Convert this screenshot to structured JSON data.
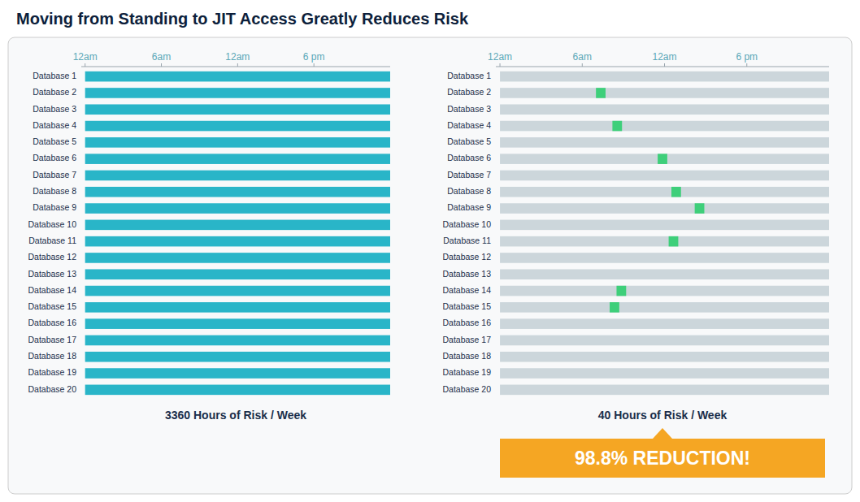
{
  "chart_data": [
    {
      "type": "bar",
      "orientation": "horizontal",
      "title": "Moving from Standing to JIT Access Greatly Reduces Risk",
      "xlabel": "3360 Hours of Risk / Week",
      "categories": [
        "Database 1",
        "Database 2",
        "Database 3",
        "Database 4",
        "Database 5",
        "Database 6",
        "Database 7",
        "Database 8",
        "Database 9",
        "Database 10",
        "Database 11",
        "Database 12",
        "Database 13",
        "Database 14",
        "Database 15",
        "Database 16",
        "Database 17",
        "Database 18",
        "Database 19",
        "Database 20"
      ],
      "values": [
        24,
        24,
        24,
        24,
        24,
        24,
        24,
        24,
        24,
        24,
        24,
        24,
        24,
        24,
        24,
        24,
        24,
        24,
        24,
        24
      ],
      "color": "#29b5c8",
      "xlim": [
        -0.3,
        24
      ],
      "xticks": [
        {
          "value": 0,
          "label": "12am"
        },
        {
          "value": 6,
          "label": "6am"
        },
        {
          "value": 12,
          "label": "12am"
        },
        {
          "value": 18,
          "label": "6 pm"
        }
      ],
      "grid": false
    },
    {
      "type": "bar",
      "orientation": "horizontal",
      "xlabel": "40 Hours of Risk / Week",
      "categories": [
        "Database 1",
        "Database 2",
        "Database 3",
        "Database 4",
        "Database 5",
        "Database 6",
        "Database 7",
        "Database 8",
        "Database 9",
        "Database 10",
        "Database 11",
        "Database 12",
        "Database 13",
        "Database 14",
        "Database 15",
        "Database 16",
        "Database 17",
        "Database 18",
        "Database 19",
        "Database 20"
      ],
      "series": [
        {
          "color": "#ccd6db",
          "values": [
            24,
            24,
            24,
            24,
            24,
            24,
            24,
            24,
            24,
            24,
            24,
            24,
            24,
            24,
            24,
            24,
            24,
            24,
            24,
            24
          ]
        },
        {
          "color": "#3ecf7a",
          "values": [
            null,
            0.7,
            null,
            0.7,
            null,
            0.7,
            null,
            0.7,
            0.7,
            null,
            0.7,
            null,
            null,
            0.7,
            0.7,
            null,
            null,
            null,
            null,
            null
          ],
          "starts": [
            null,
            7.0,
            null,
            8.2,
            null,
            11.5,
            null,
            12.5,
            14.2,
            null,
            12.3,
            null,
            null,
            8.5,
            8.0,
            null,
            null,
            null,
            null,
            null
          ]
        }
      ],
      "xlim": [
        -0.3,
        24
      ],
      "xticks": [
        {
          "value": 0,
          "label": "12am"
        },
        {
          "value": 6,
          "label": "6am"
        },
        {
          "value": 12,
          "label": "12am"
        },
        {
          "value": 18,
          "label": "6 pm"
        }
      ],
      "grid": false,
      "annotations": [
        {
          "text": "98.8% REDUCTION!",
          "color": "#f5a623"
        }
      ]
    }
  ]
}
